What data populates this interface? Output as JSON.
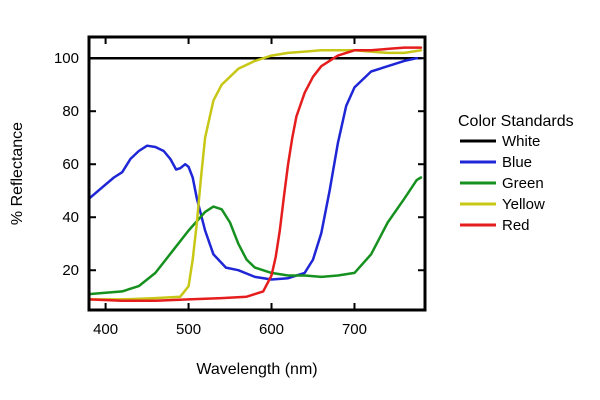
{
  "chart_data": {
    "type": "line",
    "xlabel": "Wavelength (nm)",
    "ylabel": "% Reflectance",
    "xlim": [
      380,
      785
    ],
    "ylim": [
      5,
      108
    ],
    "xticks": [
      400,
      500,
      600,
      700
    ],
    "yticks": [
      20,
      40,
      60,
      80,
      100
    ],
    "grid": false,
    "legend": {
      "title": "Color Standards",
      "placement": "right-outside"
    },
    "series": [
      {
        "name": "White",
        "color": "#000000",
        "x": [
          380,
          780
        ],
        "y": [
          100,
          100
        ]
      },
      {
        "name": "Blue",
        "color": "#1f26d6",
        "x": [
          380,
          395,
          410,
          420,
          430,
          440,
          450,
          460,
          470,
          478,
          485,
          490,
          496,
          500,
          505,
          510,
          520,
          530,
          545,
          560,
          580,
          600,
          620,
          640,
          650,
          660,
          670,
          680,
          690,
          700,
          720,
          740,
          760,
          775,
          780
        ],
        "y": [
          47,
          51,
          55,
          57,
          62,
          65,
          67,
          66.5,
          65,
          62,
          58,
          58.5,
          60,
          59,
          55,
          47,
          35,
          26,
          21,
          20,
          17.5,
          16.5,
          17,
          19,
          24,
          34,
          50,
          68,
          82,
          89,
          95,
          97,
          99,
          100,
          100
        ]
      },
      {
        "name": "Green",
        "color": "#16911f",
        "x": [
          380,
          400,
          420,
          440,
          460,
          480,
          500,
          520,
          530,
          540,
          550,
          560,
          570,
          580,
          600,
          620,
          640,
          660,
          680,
          700,
          720,
          740,
          760,
          775,
          780
        ],
        "y": [
          11,
          11.5,
          12,
          14,
          19,
          27,
          35,
          42,
          44,
          43,
          38,
          30,
          24,
          21,
          19,
          18,
          18,
          17.5,
          18,
          19,
          26,
          38,
          47,
          54,
          55
        ]
      },
      {
        "name": "Yellow",
        "color": "#c7c716",
        "x": [
          380,
          420,
          460,
          490,
          500,
          505,
          510,
          515,
          520,
          530,
          540,
          560,
          580,
          600,
          620,
          640,
          660,
          680,
          700,
          720,
          740,
          760,
          780
        ],
        "y": [
          9,
          9,
          9.5,
          10,
          14,
          24,
          38,
          55,
          70,
          84,
          90,
          96,
          99,
          101,
          102,
          102.5,
          103,
          103,
          103,
          102.5,
          102,
          102,
          103
        ]
      },
      {
        "name": "Red",
        "color": "#e51d1d",
        "x": [
          380,
          420,
          460,
          500,
          540,
          570,
          590,
          600,
          605,
          610,
          615,
          620,
          625,
          630,
          640,
          650,
          660,
          680,
          700,
          720,
          740,
          760,
          780
        ],
        "y": [
          9,
          8.5,
          8.5,
          9,
          9.5,
          10,
          12,
          18,
          25,
          35,
          48,
          60,
          70,
          78,
          87,
          93,
          97,
          101,
          103,
          103,
          103.5,
          104,
          104
        ]
      }
    ]
  }
}
